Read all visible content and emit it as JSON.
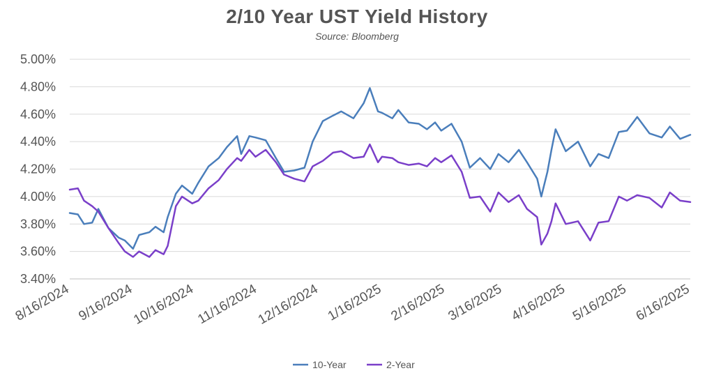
{
  "chart_data": {
    "type": "line",
    "title": "2/10 Year UST Yield History",
    "subtitle": "Source: Bloomberg",
    "xlabel": "",
    "ylabel": "",
    "ylim": [
      3.4,
      5.0
    ],
    "y_ticks": [
      "3.40%",
      "3.60%",
      "3.80%",
      "4.00%",
      "4.20%",
      "4.40%",
      "4.60%",
      "4.80%",
      "5.00%"
    ],
    "x_tick_labels": [
      "8/16/2024",
      "9/16/2024",
      "10/16/2024",
      "11/16/2024",
      "12/16/2024",
      "1/16/2025",
      "2/16/2025",
      "3/16/2025",
      "4/16/2025",
      "5/16/2025",
      "6/16/2025"
    ],
    "x_tick_dates": [
      "2024-08-16",
      "2024-09-16",
      "2024-10-16",
      "2024-11-16",
      "2024-12-16",
      "2025-01-16",
      "2025-02-16",
      "2025-03-16",
      "2025-04-16",
      "2025-05-16",
      "2025-06-16"
    ],
    "grid": "horizontal",
    "legend_position": "bottom-center",
    "series": [
      {
        "name": "10-Year",
        "color": "#4a7ebb",
        "x": [
          "2024-08-16",
          "2024-08-20",
          "2024-08-23",
          "2024-08-27",
          "2024-08-30",
          "2024-09-04",
          "2024-09-09",
          "2024-09-12",
          "2024-09-16",
          "2024-09-19",
          "2024-09-24",
          "2024-09-27",
          "2024-10-01",
          "2024-10-03",
          "2024-10-07",
          "2024-10-10",
          "2024-10-15",
          "2024-10-18",
          "2024-10-23",
          "2024-10-28",
          "2024-11-01",
          "2024-11-06",
          "2024-11-08",
          "2024-11-12",
          "2024-11-15",
          "2024-11-20",
          "2024-11-25",
          "2024-11-29",
          "2024-12-04",
          "2024-12-09",
          "2024-12-13",
          "2024-12-18",
          "2024-12-23",
          "2024-12-27",
          "2025-01-02",
          "2025-01-07",
          "2025-01-10",
          "2025-01-14",
          "2025-01-16",
          "2025-01-21",
          "2025-01-24",
          "2025-01-29",
          "2025-02-03",
          "2025-02-07",
          "2025-02-11",
          "2025-02-14",
          "2025-02-19",
          "2025-02-24",
          "2025-02-28",
          "2025-03-05",
          "2025-03-10",
          "2025-03-14",
          "2025-03-19",
          "2025-03-24",
          "2025-03-28",
          "2025-04-02",
          "2025-04-04",
          "2025-04-07",
          "2025-04-09",
          "2025-04-11",
          "2025-04-16",
          "2025-04-22",
          "2025-04-28",
          "2025-05-02",
          "2025-05-07",
          "2025-05-12",
          "2025-05-16",
          "2025-05-21",
          "2025-05-27",
          "2025-06-02",
          "2025-06-06",
          "2025-06-11",
          "2025-06-16"
        ],
        "values": [
          3.88,
          3.87,
          3.8,
          3.81,
          3.91,
          3.77,
          3.7,
          3.68,
          3.62,
          3.72,
          3.74,
          3.78,
          3.74,
          3.85,
          4.02,
          4.08,
          4.02,
          4.1,
          4.22,
          4.28,
          4.36,
          4.44,
          4.31,
          4.44,
          4.43,
          4.41,
          4.28,
          4.18,
          4.19,
          4.21,
          4.4,
          4.55,
          4.59,
          4.62,
          4.57,
          4.68,
          4.79,
          4.62,
          4.61,
          4.57,
          4.63,
          4.54,
          4.53,
          4.49,
          4.54,
          4.48,
          4.53,
          4.4,
          4.21,
          4.28,
          4.2,
          4.31,
          4.25,
          4.34,
          4.25,
          4.13,
          4.0,
          4.18,
          4.34,
          4.49,
          4.33,
          4.4,
          4.22,
          4.31,
          4.28,
          4.47,
          4.48,
          4.58,
          4.46,
          4.43,
          4.51,
          4.42,
          4.45
        ]
      },
      {
        "name": "2-Year",
        "color": "#7a3fc9",
        "x": [
          "2024-08-16",
          "2024-08-20",
          "2024-08-23",
          "2024-08-27",
          "2024-08-30",
          "2024-09-04",
          "2024-09-09",
          "2024-09-12",
          "2024-09-16",
          "2024-09-19",
          "2024-09-24",
          "2024-09-27",
          "2024-10-01",
          "2024-10-03",
          "2024-10-07",
          "2024-10-10",
          "2024-10-15",
          "2024-10-18",
          "2024-10-23",
          "2024-10-28",
          "2024-11-01",
          "2024-11-06",
          "2024-11-08",
          "2024-11-12",
          "2024-11-15",
          "2024-11-20",
          "2024-11-25",
          "2024-11-29",
          "2024-12-04",
          "2024-12-09",
          "2024-12-13",
          "2024-12-18",
          "2024-12-23",
          "2024-12-27",
          "2025-01-02",
          "2025-01-07",
          "2025-01-10",
          "2025-01-14",
          "2025-01-16",
          "2025-01-21",
          "2025-01-24",
          "2025-01-29",
          "2025-02-03",
          "2025-02-07",
          "2025-02-11",
          "2025-02-14",
          "2025-02-19",
          "2025-02-24",
          "2025-02-28",
          "2025-03-05",
          "2025-03-10",
          "2025-03-14",
          "2025-03-19",
          "2025-03-24",
          "2025-03-28",
          "2025-04-02",
          "2025-04-04",
          "2025-04-07",
          "2025-04-09",
          "2025-04-11",
          "2025-04-16",
          "2025-04-22",
          "2025-04-28",
          "2025-05-02",
          "2025-05-07",
          "2025-05-12",
          "2025-05-16",
          "2025-05-21",
          "2025-05-27",
          "2025-06-02",
          "2025-06-06",
          "2025-06-11",
          "2025-06-16"
        ],
        "values": [
          4.05,
          4.06,
          3.97,
          3.93,
          3.89,
          3.77,
          3.66,
          3.6,
          3.56,
          3.6,
          3.56,
          3.61,
          3.58,
          3.64,
          3.93,
          4.0,
          3.95,
          3.97,
          4.06,
          4.12,
          4.2,
          4.28,
          4.26,
          4.34,
          4.29,
          4.34,
          4.25,
          4.16,
          4.13,
          4.11,
          4.22,
          4.26,
          4.32,
          4.33,
          4.28,
          4.29,
          4.38,
          4.25,
          4.29,
          4.28,
          4.25,
          4.23,
          4.24,
          4.22,
          4.28,
          4.25,
          4.3,
          4.18,
          3.99,
          4.0,
          3.89,
          4.03,
          3.96,
          4.01,
          3.91,
          3.85,
          3.65,
          3.73,
          3.82,
          3.95,
          3.8,
          3.82,
          3.68,
          3.81,
          3.82,
          4.0,
          3.97,
          4.01,
          3.99,
          3.92,
          4.03,
          3.97,
          3.96
        ]
      }
    ]
  }
}
